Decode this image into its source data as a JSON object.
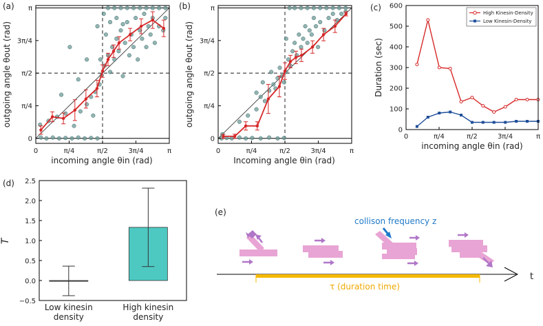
{
  "chart_data": [
    {
      "panel": "(a)",
      "type": "scatter",
      "xlabel": "incoming angle θin (rad)",
      "ylabel": "outgoing angle θout (rad)",
      "xlim": [
        0,
        3.1416
      ],
      "ylim": [
        -0.12,
        3.2
      ],
      "x_tick_values": [
        0,
        0.7854,
        1.5708,
        2.3562,
        3.1416
      ],
      "x_tick_labels": [
        "0",
        "π/4",
        "π/2",
        "3π/4",
        "π"
      ],
      "y_tick_values": [
        0,
        0.7854,
        1.5708,
        2.3562,
        3.1416
      ],
      "y_tick_labels": [
        "0",
        "π/4",
        "π/2",
        "3π/4",
        "π"
      ],
      "reference_lines": {
        "vertical": 1.5708,
        "horizontal": 1.5708,
        "diagonal": true
      },
      "scatter": [
        [
          0.12,
          0.02
        ],
        [
          0.25,
          0.0
        ],
        [
          0.4,
          0.02
        ],
        [
          0.55,
          0.0
        ],
        [
          0.7,
          0.01
        ],
        [
          0.85,
          0.0
        ],
        [
          1.0,
          0.02
        ],
        [
          1.15,
          0.0
        ],
        [
          1.3,
          0.01
        ],
        [
          1.45,
          0.0
        ],
        [
          0.1,
          0.33
        ],
        [
          0.3,
          0.42
        ],
        [
          0.5,
          0.52
        ],
        [
          0.7,
          0.6
        ],
        [
          0.9,
          0.3
        ],
        [
          1.05,
          0.65
        ],
        [
          1.2,
          0.82
        ],
        [
          1.3,
          1.0
        ],
        [
          1.4,
          1.12
        ],
        [
          1.5,
          1.3
        ],
        [
          0.6,
          1.05
        ],
        [
          0.8,
          2.2
        ],
        [
          1.0,
          1.42
        ],
        [
          1.2,
          1.9
        ],
        [
          1.35,
          0.55
        ],
        [
          1.45,
          2.7
        ],
        [
          1.55,
          1.52
        ],
        [
          1.62,
          1.75
        ],
        [
          1.7,
          2.0
        ],
        [
          1.75,
          1.6
        ],
        [
          1.8,
          2.2
        ],
        [
          1.85,
          1.9
        ],
        [
          1.9,
          2.4
        ],
        [
          1.95,
          2.1
        ],
        [
          2.0,
          2.6
        ],
        [
          2.05,
          1.5
        ],
        [
          2.1,
          2.3
        ],
        [
          2.15,
          2.8
        ],
        [
          2.2,
          2.0
        ],
        [
          2.25,
          2.5
        ],
        [
          2.3,
          2.2
        ],
        [
          2.35,
          2.9
        ],
        [
          2.4,
          1.9
        ],
        [
          2.45,
          2.6
        ],
        [
          2.5,
          2.4
        ],
        [
          2.55,
          3.0
        ],
        [
          2.6,
          2.2
        ],
        [
          2.65,
          2.7
        ],
        [
          2.7,
          2.5
        ],
        [
          2.75,
          2.9
        ],
        [
          2.8,
          2.3
        ],
        [
          2.9,
          2.7
        ],
        [
          3.0,
          2.6
        ],
        [
          3.05,
          2.9
        ],
        [
          1.65,
          2.5
        ],
        [
          1.7,
          3.14
        ],
        [
          1.85,
          3.14
        ],
        [
          2.0,
          3.14
        ],
        [
          2.15,
          3.14
        ],
        [
          2.3,
          3.14
        ],
        [
          2.45,
          3.14
        ],
        [
          2.6,
          3.14
        ],
        [
          2.75,
          3.14
        ],
        [
          2.9,
          3.14
        ],
        [
          3.05,
          3.14
        ],
        [
          1.9,
          2.9
        ],
        [
          2.05,
          2.75
        ],
        [
          1.6,
          3.0
        ],
        [
          1.75,
          2.8
        ],
        [
          1.52,
          1.9
        ]
      ],
      "mean_series": {
        "x": [
          0.12,
          0.39,
          0.65,
          0.92,
          1.18,
          1.44,
          1.57,
          1.7,
          1.83,
          1.96,
          2.22,
          2.48,
          2.75,
          3.01
        ],
        "y": [
          0.2,
          0.52,
          0.48,
          0.68,
          0.95,
          1.2,
          1.62,
          1.9,
          2.1,
          2.3,
          2.5,
          2.7,
          2.85,
          2.65
        ],
        "err": [
          0.1,
          0.12,
          0.13,
          0.25,
          0.22,
          0.2,
          0.15,
          0.15,
          0.15,
          0.15,
          0.15,
          0.18,
          0.2,
          0.2
        ]
      }
    },
    {
      "panel": "(b)",
      "type": "scatter",
      "xlabel": "Incoming angle θin (rad)",
      "ylabel": "outgoing angle θout (rad)",
      "xlim": [
        0,
        3.1416
      ],
      "ylim": [
        -0.12,
        3.2
      ],
      "x_tick_values": [
        0,
        0.7854,
        1.5708,
        2.3562,
        3.1416
      ],
      "x_tick_labels": [
        "0",
        "π/4",
        "π/2",
        "3π/4",
        "π"
      ],
      "y_tick_values": [
        0,
        0.7854,
        1.5708,
        2.3562,
        3.1416
      ],
      "y_tick_labels": [
        "0",
        "π/4",
        "π/2",
        "3π/4",
        "π"
      ],
      "reference_lines": {
        "vertical": 1.5708,
        "horizontal": 1.5708,
        "diagonal": true
      },
      "scatter": [
        [
          0.08,
          0.0
        ],
        [
          0.2,
          0.01
        ],
        [
          0.32,
          0.0
        ],
        [
          0.5,
          0.02
        ],
        [
          0.65,
          0.0
        ],
        [
          0.8,
          0.01
        ],
        [
          1.0,
          0.0
        ],
        [
          1.2,
          0.02
        ],
        [
          1.4,
          0.0
        ],
        [
          1.55,
          0.01
        ],
        [
          0.1,
          0.1
        ],
        [
          0.5,
          0.4
        ],
        [
          0.7,
          0.55
        ],
        [
          0.9,
          0.7
        ],
        [
          1.0,
          1.0
        ],
        [
          1.1,
          0.9
        ],
        [
          1.2,
          1.15
        ],
        [
          1.3,
          1.3
        ],
        [
          1.4,
          1.45
        ],
        [
          1.5,
          1.5
        ],
        [
          0.9,
          1.1
        ],
        [
          1.05,
          1.35
        ],
        [
          1.25,
          1.6
        ],
        [
          1.35,
          1.2
        ],
        [
          1.45,
          1.7
        ],
        [
          1.55,
          1.35
        ],
        [
          1.6,
          1.6
        ],
        [
          1.65,
          1.9
        ],
        [
          1.7,
          1.75
        ],
        [
          1.75,
          2.1
        ],
        [
          1.8,
          2.3
        ],
        [
          1.85,
          2.0
        ],
        [
          1.9,
          2.5
        ],
        [
          1.95,
          2.2
        ],
        [
          2.0,
          2.4
        ],
        [
          2.05,
          2.7
        ],
        [
          2.1,
          2.3
        ],
        [
          2.15,
          2.6
        ],
        [
          2.2,
          2.5
        ],
        [
          2.25,
          2.9
        ],
        [
          2.3,
          2.7
        ],
        [
          2.4,
          2.8
        ],
        [
          2.5,
          2.6
        ],
        [
          2.6,
          2.9
        ],
        [
          2.7,
          3.0
        ],
        [
          2.8,
          2.85
        ],
        [
          2.9,
          3.0
        ],
        [
          3.0,
          3.05
        ],
        [
          1.68,
          3.14
        ],
        [
          1.8,
          3.14
        ],
        [
          1.95,
          3.14
        ],
        [
          2.1,
          3.14
        ],
        [
          2.25,
          3.14
        ],
        [
          2.4,
          3.14
        ],
        [
          2.55,
          3.14
        ],
        [
          2.7,
          3.14
        ],
        [
          2.85,
          3.14
        ],
        [
          3.0,
          3.14
        ],
        [
          1.6,
          2.4
        ],
        [
          2.35,
          2.2
        ]
      ],
      "mean_series": {
        "x": [
          0.12,
          0.39,
          0.65,
          0.92,
          1.18,
          1.44,
          1.57,
          1.7,
          1.83,
          1.96,
          2.22,
          2.48,
          2.75,
          3.01
        ],
        "y": [
          0.05,
          0.05,
          0.3,
          0.3,
          0.95,
          1.25,
          1.62,
          1.85,
          1.95,
          2.0,
          2.2,
          2.5,
          2.7,
          3.0
        ],
        "err": [
          0.05,
          0.05,
          0.1,
          0.1,
          0.35,
          0.25,
          0.2,
          0.15,
          0.15,
          0.15,
          0.15,
          0.15,
          0.15,
          0.05
        ]
      }
    },
    {
      "panel": "(c)",
      "type": "line",
      "xlabel": "incoming angle θin (rad)",
      "ylabel": "Duration (sec)",
      "xlim": [
        0,
        3.1416
      ],
      "ylim": [
        0,
        600
      ],
      "x_tick_values": [
        0,
        0.7854,
        1.5708,
        2.3562,
        3.1416
      ],
      "x_tick_labels": [
        "0",
        "π/4",
        "π/2",
        "3π/4",
        "π"
      ],
      "y_ticks": [
        0,
        100,
        200,
        300,
        400,
        500,
        600
      ],
      "legend_position": "top-right",
      "series": [
        {
          "name": "High Kinesin-Density",
          "color": "#d62728",
          "x": [
            0.26,
            0.52,
            0.79,
            1.05,
            1.31,
            1.57,
            1.83,
            2.09,
            2.36,
            2.62,
            2.88,
            3.14
          ],
          "values": [
            315,
            530,
            300,
            295,
            135,
            155,
            115,
            85,
            110,
            145,
            145,
            145
          ]
        },
        {
          "name": "Low Kinesin-Density",
          "color": "#1f4e9a",
          "x": [
            0.26,
            0.52,
            0.79,
            1.05,
            1.31,
            1.57,
            1.83,
            2.09,
            2.36,
            2.62,
            2.88,
            3.14
          ],
          "values": [
            15,
            60,
            80,
            85,
            70,
            35,
            35,
            35,
            35,
            40,
            40,
            40
          ]
        }
      ]
    },
    {
      "panel": "(d)",
      "type": "bar",
      "ylabel": "T",
      "ylim": [
        -0.5,
        2.5
      ],
      "y_ticks": [
        -0.5,
        0.0,
        0.5,
        1.0,
        1.5,
        2.0,
        2.5
      ],
      "y_tick_labels": [
        "−0.5",
        "0.0",
        "0.5",
        "1.0",
        "1.5",
        "2.0",
        "2.5"
      ],
      "categories": [
        "Low kinesin density",
        "High kinesin density"
      ],
      "category_lines": [
        [
          "Low kinesin",
          "density"
        ],
        [
          "High kinesin",
          "density"
        ]
      ],
      "values": [
        -0.01,
        1.33
      ],
      "errors": [
        0.37,
        0.98
      ],
      "colors": [
        "#555555",
        "#4ec9c2"
      ]
    }
  ],
  "annotations": {
    "panel_e_label": "(e)",
    "collision_label": "collison frequency z",
    "duration_label": "τ (duration time)",
    "time_axis_label": "t"
  },
  "colors": {
    "red": "#d62728",
    "blue": "#1f4e9a",
    "teal": "#4ec9c2",
    "scatter": "#6e9c99",
    "pink": "#e8a4d4",
    "purple": "#b076c8",
    "orange": "#f5b800",
    "annotation_blue": "#1f78c8"
  }
}
